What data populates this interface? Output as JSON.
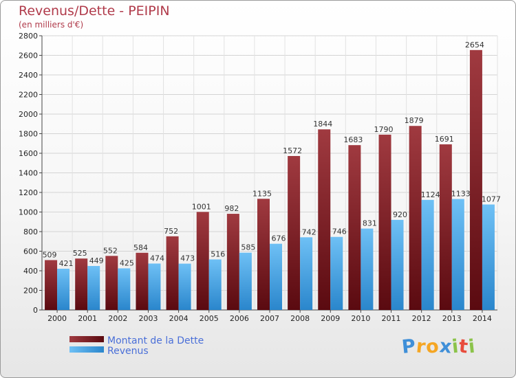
{
  "header": {
    "title": "Revenus/Dette - PEIPIN",
    "subtitle": "(en milliers d'€)"
  },
  "logo": {
    "letters": [
      "P",
      "r",
      "o",
      "x",
      "i",
      "t",
      "i"
    ],
    "colors": [
      "#3f8fd8",
      "#f5a623",
      "#f5a623",
      "#3f8fd8",
      "#8bc34a",
      "#e84c3d",
      "#8bc34a"
    ]
  },
  "chart_data": {
    "type": "bar",
    "categories": [
      "2000",
      "2001",
      "2002",
      "2003",
      "2004",
      "2005",
      "2006",
      "2007",
      "2008",
      "2009",
      "2010",
      "2011",
      "2012",
      "2013",
      "2014"
    ],
    "series": [
      {
        "name": "Montant de la Dette",
        "color": "#7a1c22",
        "values": [
          509,
          525,
          552,
          584,
          752,
          1001,
          982,
          1135,
          1572,
          1844,
          1683,
          1790,
          1879,
          1691,
          2654
        ]
      },
      {
        "name": "Revenus",
        "color": "#4aa6e8",
        "values": [
          421,
          449,
          425,
          474,
          473,
          516,
          585,
          676,
          742,
          746,
          831,
          920,
          1124,
          1133,
          1077
        ]
      }
    ],
    "ylim": [
      0,
      2800
    ],
    "yticks": [
      "0",
      "200",
      "400",
      "600",
      "800",
      "1000",
      "1200",
      "1400",
      "1600",
      "1800",
      "2000",
      "2200",
      "2400",
      "2600",
      "2800"
    ],
    "grid": true,
    "legend": "bottom-left"
  }
}
